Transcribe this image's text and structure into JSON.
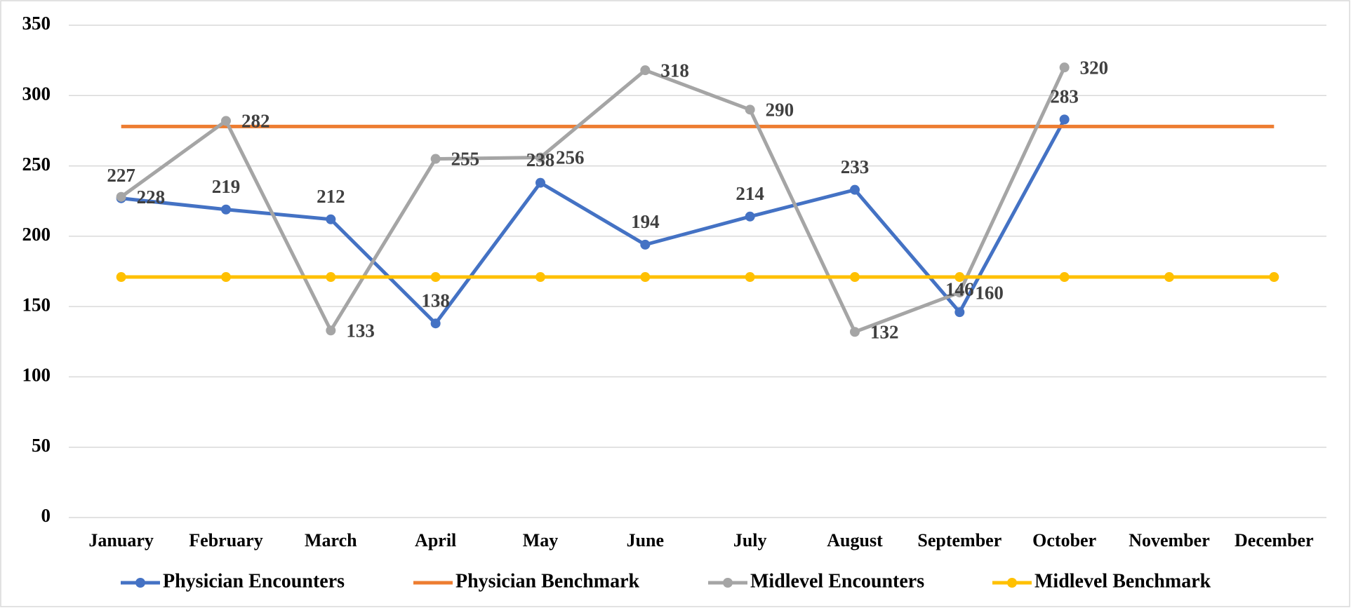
{
  "chart_data": {
    "type": "line",
    "categories": [
      "January",
      "February",
      "March",
      "April",
      "May",
      "June",
      "July",
      "August",
      "September",
      "October",
      "November",
      "December"
    ],
    "series": [
      {
        "name": "Physician Encounters",
        "color": "#4472c4",
        "marker": true,
        "labels": "above",
        "values": [
          227,
          219,
          212,
          138,
          238,
          194,
          214,
          233,
          146,
          283,
          null,
          null
        ]
      },
      {
        "name": "Physician Benchmark",
        "color": "#ed7d31",
        "marker": false,
        "values": [
          278,
          278,
          278,
          278,
          278,
          278,
          278,
          278,
          278,
          278,
          278,
          278
        ]
      },
      {
        "name": "Midlevel Encounters",
        "color": "#a5a5a5",
        "marker": true,
        "labels": "right",
        "values": [
          228,
          282,
          133,
          255,
          256,
          318,
          290,
          132,
          160,
          320,
          null,
          null
        ]
      },
      {
        "name": "Midlevel Benchmark",
        "color": "#ffc000",
        "marker": true,
        "values": [
          171,
          171,
          171,
          171,
          171,
          171,
          171,
          171,
          171,
          171,
          171,
          171
        ]
      }
    ],
    "ylim": [
      0,
      350
    ],
    "yticks": [
      0,
      50,
      100,
      150,
      200,
      250,
      300,
      350
    ],
    "grid": true,
    "legend": "bottom"
  }
}
